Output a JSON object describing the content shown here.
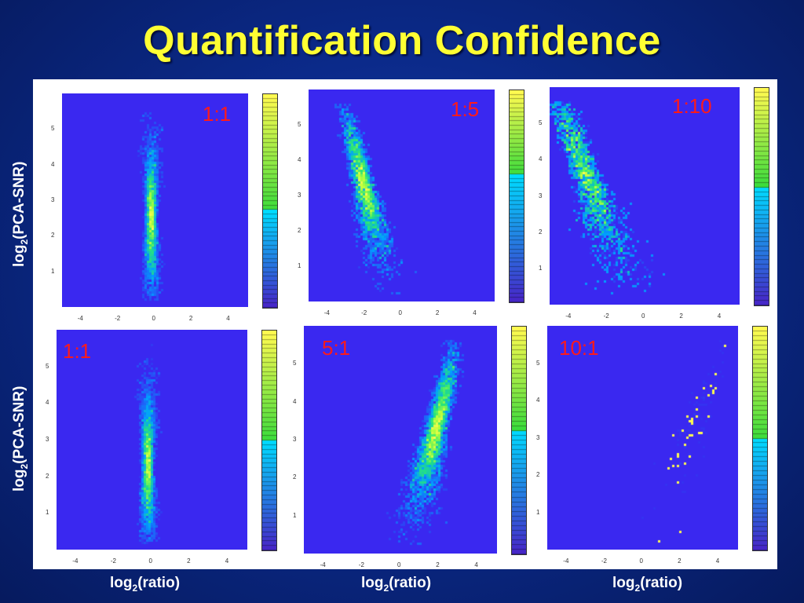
{
  "title": "Quantification Confidence",
  "axis_labels": {
    "y_prefix": "log",
    "y_sub": "2",
    "y_suffix": "(PCA-SNR)",
    "x_prefix": "log",
    "x_sub": "2",
    "x_suffix": "(ratio)"
  },
  "colors": {
    "title": "#ffff33",
    "ratio_label": "#ff1a1a",
    "plot_background": "#3a28f0"
  },
  "chart_data": [
    {
      "type": "heatmap",
      "ratio_label": "1:1",
      "x_ticks": [
        "-4",
        "-2",
        "0",
        "2",
        "4"
      ],
      "y_ticks": [
        "1",
        "2",
        "3",
        "4",
        "5"
      ],
      "xlim": [
        -5,
        5
      ],
      "ylim": [
        0,
        6
      ],
      "density_peak": {
        "x": -0.2,
        "y": 2.5
      },
      "spread": "narrow",
      "colorbar_split": 0.45
    },
    {
      "type": "heatmap",
      "ratio_label": "1:5",
      "x_ticks": [
        "-4",
        "-2",
        "0",
        "2",
        "4"
      ],
      "y_ticks": [
        "1",
        "2",
        "3",
        "4",
        "5"
      ],
      "xlim": [
        -5,
        5
      ],
      "ylim": [
        0,
        6
      ],
      "density_peak": {
        "x": -2.0,
        "y": 3.2
      },
      "spread": "curved-left",
      "colorbar_split": 0.6
    },
    {
      "type": "heatmap",
      "ratio_label": "1:10",
      "x_ticks": [
        "-4",
        "-2",
        "0",
        "2",
        "4"
      ],
      "y_ticks": [
        "1",
        "2",
        "3",
        "4",
        "5"
      ],
      "xlim": [
        -5,
        5
      ],
      "ylim": [
        0,
        6
      ],
      "density_peak": {
        "x": -3.0,
        "y": 3.5
      },
      "spread": "curved-left-wide",
      "colorbar_split": 0.55
    },
    {
      "type": "heatmap",
      "ratio_label": "1:1",
      "x_ticks": [
        "-4",
        "-2",
        "0",
        "2",
        "4"
      ],
      "y_ticks": [
        "1",
        "2",
        "3",
        "4",
        "5"
      ],
      "xlim": [
        -5,
        5
      ],
      "ylim": [
        0,
        6
      ],
      "density_peak": {
        "x": -0.2,
        "y": 2.3
      },
      "spread": "narrow",
      "colorbar_split": 0.5
    },
    {
      "type": "heatmap",
      "ratio_label": "5:1",
      "x_ticks": [
        "-4",
        "-2",
        "0",
        "2",
        "4"
      ],
      "y_ticks": [
        "1",
        "2",
        "3",
        "4",
        "5"
      ],
      "xlim": [
        -5,
        5
      ],
      "ylim": [
        0,
        6
      ],
      "density_peak": {
        "x": 1.8,
        "y": 3.2
      },
      "spread": "curved-right",
      "colorbar_split": 0.55
    },
    {
      "type": "heatmap",
      "ratio_label": "10:1",
      "x_ticks": [
        "-4",
        "-2",
        "0",
        "2",
        "4"
      ],
      "y_ticks": [
        "1",
        "2",
        "3",
        "4",
        "5"
      ],
      "xlim": [
        -5,
        5
      ],
      "ylim": [
        0,
        6
      ],
      "density_peak": {
        "x": 2.8,
        "y": 3.5
      },
      "spread": "curved-right-wide",
      "colorbar_split": 0.5
    }
  ]
}
